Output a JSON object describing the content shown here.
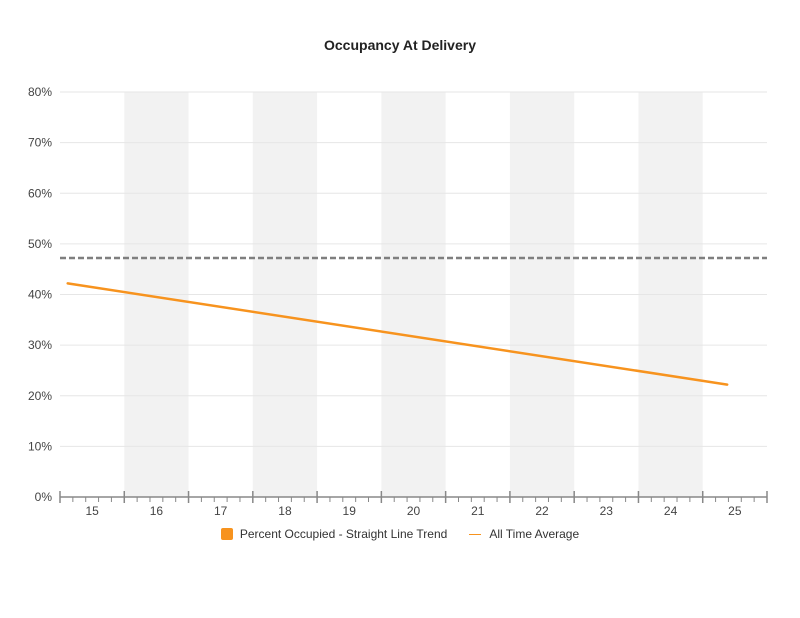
{
  "chart_data": {
    "type": "line",
    "title": "Occupancy At Delivery",
    "x": [
      15,
      16,
      17,
      18,
      19,
      20,
      21,
      22,
      23,
      24,
      25
    ],
    "xlim": [
      14.5,
      25.5
    ],
    "ylim": [
      0,
      80
    ],
    "y_ticks": [
      0,
      10,
      20,
      30,
      40,
      50,
      60,
      70,
      80
    ],
    "y_tick_labels": [
      "0%",
      "10%",
      "20%",
      "30%",
      "40%",
      "50%",
      "60%",
      "70%",
      "80%"
    ],
    "x_tick_labels": [
      "15",
      "16",
      "17",
      "18",
      "19",
      "20",
      "21",
      "22",
      "23",
      "24",
      "25"
    ],
    "shaded_bands": [
      16,
      18,
      20,
      22,
      24
    ],
    "grid": true,
    "series": [
      {
        "name": "Percent Occupied - Straight Line Trend",
        "type": "line",
        "color": "#f7931e",
        "points": [
          [
            14.62,
            42.2
          ],
          [
            24.88,
            22.2
          ]
        ]
      },
      {
        "name": "All Time Average",
        "type": "reference-line",
        "color": "#7f7f7f",
        "legend_color": "#f7931e",
        "style": "dashed",
        "value": 47.2
      }
    ],
    "legend_position": "bottom-center"
  }
}
